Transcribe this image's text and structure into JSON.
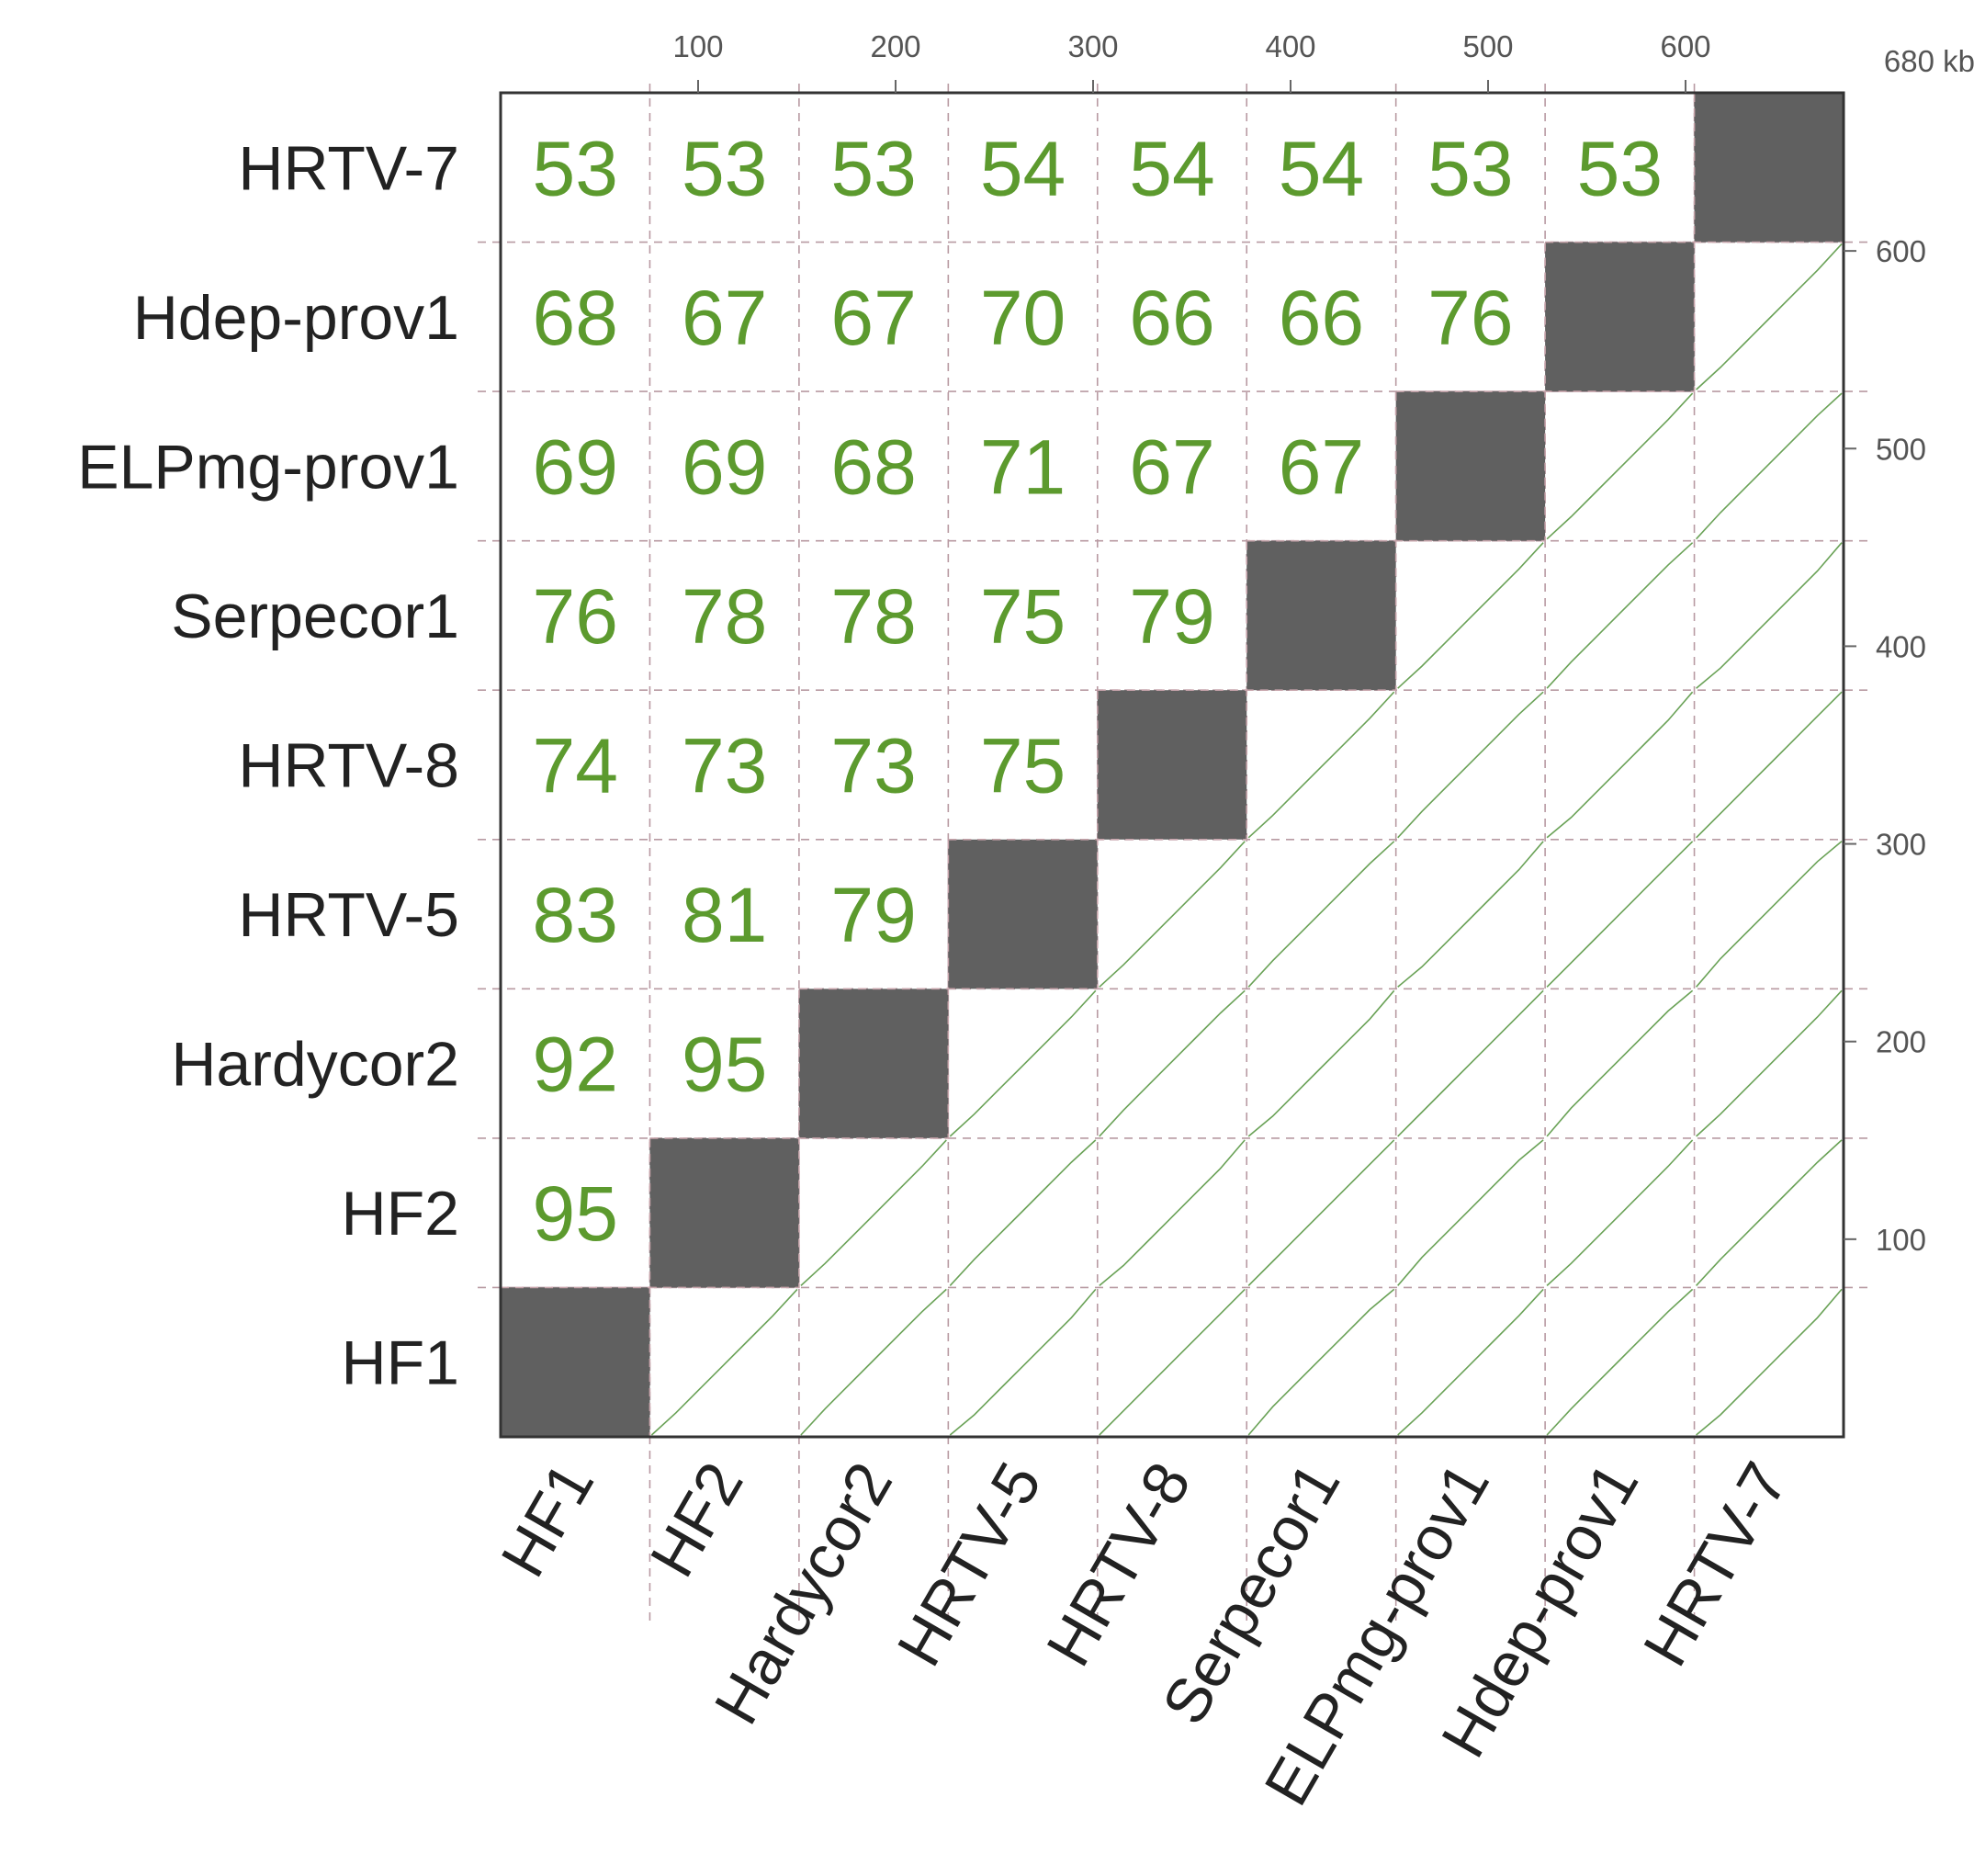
{
  "chart_data": {
    "type": "heatmap",
    "genomes": [
      "HF1",
      "HF2",
      "Hardycor2",
      "HRTV-5",
      "HRTV-8",
      "Serpecor1",
      "ELPmg-prov1",
      "Hdep-prov1",
      "HRTV-7"
    ],
    "axis_max_kb": 680,
    "x_ticks": [
      100,
      200,
      300,
      400,
      500,
      600
    ],
    "y_ticks": [
      100,
      200,
      300,
      400,
      500,
      600
    ],
    "axis_end_label": "680 kb",
    "identity_matrix": [
      [
        "HF2",
        "HF1",
        95
      ],
      [
        "Hardycor2",
        "HF1",
        92
      ],
      [
        "Hardycor2",
        "HF2",
        95
      ],
      [
        "HRTV-5",
        "HF1",
        83
      ],
      [
        "HRTV-5",
        "HF2",
        81
      ],
      [
        "HRTV-5",
        "Hardycor2",
        79
      ],
      [
        "HRTV-8",
        "HF1",
        74
      ],
      [
        "HRTV-8",
        "HF2",
        73
      ],
      [
        "HRTV-8",
        "Hardycor2",
        73
      ],
      [
        "HRTV-8",
        "HRTV-5",
        75
      ],
      [
        "Serpecor1",
        "HF1",
        76
      ],
      [
        "Serpecor1",
        "HF2",
        78
      ],
      [
        "Serpecor1",
        "Hardycor2",
        78
      ],
      [
        "Serpecor1",
        "HRTV-5",
        75
      ],
      [
        "Serpecor1",
        "HRTV-8",
        79
      ],
      [
        "ELPmg-prov1",
        "HF1",
        69
      ],
      [
        "ELPmg-prov1",
        "HF2",
        69
      ],
      [
        "ELPmg-prov1",
        "Hardycor2",
        68
      ],
      [
        "ELPmg-prov1",
        "HRTV-5",
        71
      ],
      [
        "ELPmg-prov1",
        "HRTV-8",
        67
      ],
      [
        "ELPmg-prov1",
        "Serpecor1",
        67
      ],
      [
        "Hdep-prov1",
        "HF1",
        68
      ],
      [
        "Hdep-prov1",
        "HF2",
        67
      ],
      [
        "Hdep-prov1",
        "Hardycor2",
        67
      ],
      [
        "Hdep-prov1",
        "HRTV-5",
        70
      ],
      [
        "Hdep-prov1",
        "HRTV-8",
        66
      ],
      [
        "Hdep-prov1",
        "Serpecor1",
        66
      ],
      [
        "Hdep-prov1",
        "ELPmg-prov1",
        76
      ],
      [
        "HRTV-7",
        "HF1",
        53
      ],
      [
        "HRTV-7",
        "HF2",
        53
      ],
      [
        "HRTV-7",
        "Hardycor2",
        53
      ],
      [
        "HRTV-7",
        "HRTV-5",
        54
      ],
      [
        "HRTV-7",
        "HRTV-8",
        54
      ],
      [
        "HRTV-7",
        "Serpecor1",
        54
      ],
      [
        "HRTV-7",
        "ELPmg-prov1",
        53
      ],
      [
        "HRTV-7",
        "Hdep-prov1",
        53
      ]
    ],
    "colors": {
      "value_text": "#5c9a2e",
      "diagonal_block": "#606060",
      "dotplot_line": "#6aa257",
      "grid": "#b89aa2"
    }
  }
}
